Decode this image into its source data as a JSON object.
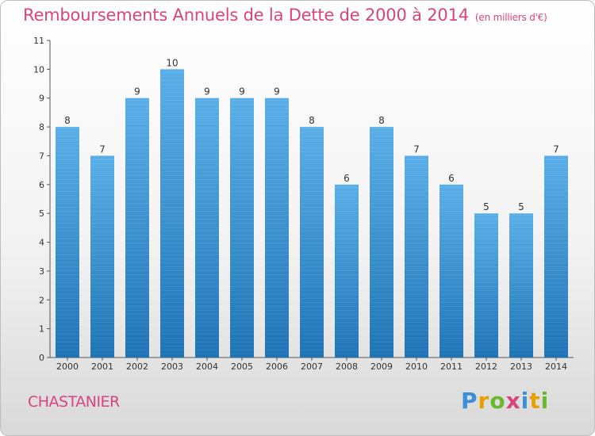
{
  "title": "Remboursements Annuels de la Dette de 2000 à 2014",
  "unit": "(en milliers d'€)",
  "place": "CHASTANIER",
  "logo": {
    "letters": [
      "P",
      "r",
      "o",
      "x",
      "i",
      "t",
      "i"
    ],
    "colors": [
      "#3a8fd6",
      "#e8a000",
      "#6ab82e",
      "#d8457c",
      "#3a8fd6",
      "#e8a000",
      "#6ab82e"
    ]
  },
  "colors": {
    "bar_top": "#5aaee8",
    "bar_bottom": "#1f74b5",
    "title": "#d8457c"
  },
  "chart_data": {
    "type": "bar",
    "title": "Remboursements Annuels de la Dette de 2000 à 2014",
    "xlabel": "",
    "ylabel": "",
    "categories": [
      "2000",
      "2001",
      "2002",
      "2003",
      "2004",
      "2005",
      "2006",
      "2007",
      "2008",
      "2009",
      "2010",
      "2011",
      "2012",
      "2013",
      "2014"
    ],
    "values": [
      8,
      7,
      9,
      10,
      9,
      9,
      9,
      8,
      6,
      8,
      7,
      6,
      5,
      5,
      7
    ],
    "ylim": [
      0,
      11
    ],
    "yticks": [
      0,
      1,
      2,
      3,
      4,
      5,
      6,
      7,
      8,
      9,
      10,
      11
    ],
    "grid": false,
    "legend": "none"
  }
}
